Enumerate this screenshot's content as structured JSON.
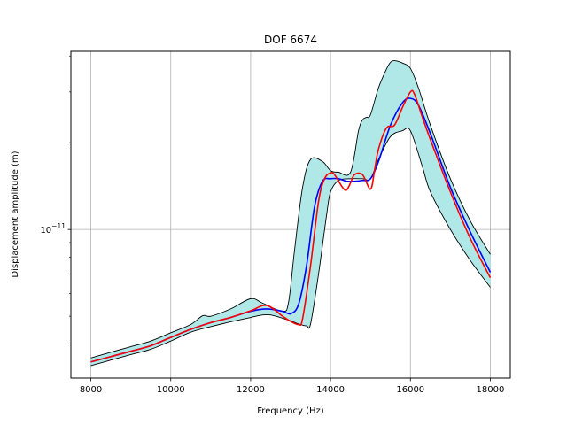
{
  "chart_data": {
    "type": "area",
    "title": "DOF 6674",
    "xlabel": "Frequency (Hz)",
    "ylabel": "Displacement amplitude (m)",
    "xlim": [
      7500,
      18500
    ],
    "ylim": [
      3.05e-12,
      4.15e-11
    ],
    "yscale": "log",
    "grid": true,
    "x_ticks": [
      8000,
      10000,
      12000,
      14000,
      16000,
      18000
    ],
    "x_tick_labels": [
      "8000",
      "10000",
      "12000",
      "14000",
      "16000",
      "18000"
    ],
    "y_ticks": [
      1e-11
    ],
    "y_tick_labels": [
      "10−11"
    ],
    "colors": {
      "band_fill": "#b0e8e8",
      "band_edge": "#000000",
      "blue_line": "#0000ff",
      "red_line": "#ff0000",
      "grid": "#b0b0b0"
    },
    "series": [
      {
        "role": "band-upper",
        "x": [
          8000,
          8500,
          9000,
          9500,
          10000,
          10500,
          10800,
          11000,
          11500,
          12000,
          12300,
          12800,
          12950,
          13100,
          13300,
          13500,
          13800,
          14000,
          14200,
          14500,
          14700,
          14800,
          14900,
          15000,
          15200,
          15400,
          15500,
          15600,
          15800,
          16000,
          16200,
          16500,
          17000,
          17500,
          18000
        ],
        "y": [
          3.58e-12,
          3.75e-12,
          3.92e-12,
          4.1e-12,
          4.38e-12,
          4.68e-12,
          5.02e-12,
          5e-12,
          5.3e-12,
          5.75e-12,
          5.55e-12,
          5.2e-12,
          5.6e-12,
          8.5e-12,
          1.4e-11,
          1.75e-11,
          1.72e-11,
          1.6e-11,
          1.58e-11,
          1.58e-11,
          2.2e-11,
          2.4e-11,
          2.45e-11,
          2.5e-11,
          3.1e-11,
          3.6e-11,
          3.8e-11,
          3.85e-11,
          3.78e-11,
          3.62e-11,
          3.1e-11,
          2.3e-11,
          1.5e-11,
          1.07e-11,
          8.2e-12
        ]
      },
      {
        "role": "band-lower",
        "x": [
          8000,
          8500,
          9000,
          9500,
          10000,
          10500,
          11000,
          11500,
          12000,
          12300,
          12500,
          12800,
          13000,
          13200,
          13400,
          13500,
          13700,
          13900,
          14000,
          14200,
          14500,
          14800,
          15000,
          15200,
          15500,
          15800,
          16000,
          16300,
          16500,
          17000,
          17500,
          18000
        ],
        "y": [
          3.37e-12,
          3.52e-12,
          3.68e-12,
          3.84e-12,
          4.1e-12,
          4.4e-12,
          4.6e-12,
          4.78e-12,
          4.95e-12,
          5.05e-12,
          5.05e-12,
          4.92e-12,
          4.82e-12,
          4.7e-12,
          4.63e-12,
          4.7e-12,
          7e-12,
          1.12e-11,
          1.35e-11,
          1.48e-11,
          1.5e-11,
          1.5e-11,
          1.5e-11,
          1.75e-11,
          2.1e-11,
          2.2e-11,
          2.2e-11,
          1.65e-11,
          1.35e-11,
          1e-11,
          7.8e-12,
          6.3e-12
        ]
      },
      {
        "role": "mean",
        "color": "blue",
        "x": [
          8000,
          8500,
          9000,
          9500,
          10000,
          10500,
          11000,
          11500,
          12000,
          12400,
          12800,
          13000,
          13200,
          13400,
          13600,
          13800,
          14000,
          14200,
          14400,
          14600,
          14800,
          15000,
          15200,
          15500,
          15800,
          16000,
          16200,
          16500,
          17000,
          17500,
          18000
        ],
        "y": [
          3.47e-12,
          3.62e-12,
          3.78e-12,
          3.95e-12,
          4.22e-12,
          4.5e-12,
          4.75e-12,
          4.95e-12,
          5.2e-12,
          5.3e-12,
          5.2e-12,
          5.1e-12,
          5.5e-12,
          7.5e-12,
          1.2e-11,
          1.47e-11,
          1.5e-11,
          1.5e-11,
          1.47e-11,
          1.47e-11,
          1.48e-11,
          1.5e-11,
          1.72e-11,
          2.3e-11,
          2.75e-11,
          2.85e-11,
          2.7e-11,
          2.15e-11,
          1.4e-11,
          9.8e-12,
          7.1e-12
        ]
      },
      {
        "role": "reference",
        "color": "red",
        "x": [
          8000,
          8500,
          9000,
          9500,
          10000,
          10500,
          11000,
          11500,
          12000,
          12400,
          12800,
          13000,
          13200,
          13300,
          13500,
          13700,
          13850,
          14000,
          14100,
          14300,
          14400,
          14500,
          14600,
          14800,
          15000,
          15100,
          15200,
          15400,
          15600,
          15800,
          16000,
          16100,
          16300,
          16500,
          17000,
          17500,
          18000
        ],
        "y": [
          3.47e-12,
          3.62e-12,
          3.78e-12,
          3.95e-12,
          4.22e-12,
          4.5e-12,
          4.75e-12,
          4.95e-12,
          5.22e-12,
          5.45e-12,
          5e-12,
          4.8e-12,
          4.68e-12,
          4.9e-12,
          7.5e-12,
          1.25e-11,
          1.5e-11,
          1.57e-11,
          1.55e-11,
          1.4e-11,
          1.37e-11,
          1.45e-11,
          1.55e-11,
          1.55e-11,
          1.38e-11,
          1.6e-11,
          1.9e-11,
          2.25e-11,
          2.3e-11,
          2.65e-11,
          3e-11,
          2.95e-11,
          2.45e-11,
          2.05e-11,
          1.35e-11,
          9.3e-12,
          6.8e-12
        ]
      }
    ]
  }
}
